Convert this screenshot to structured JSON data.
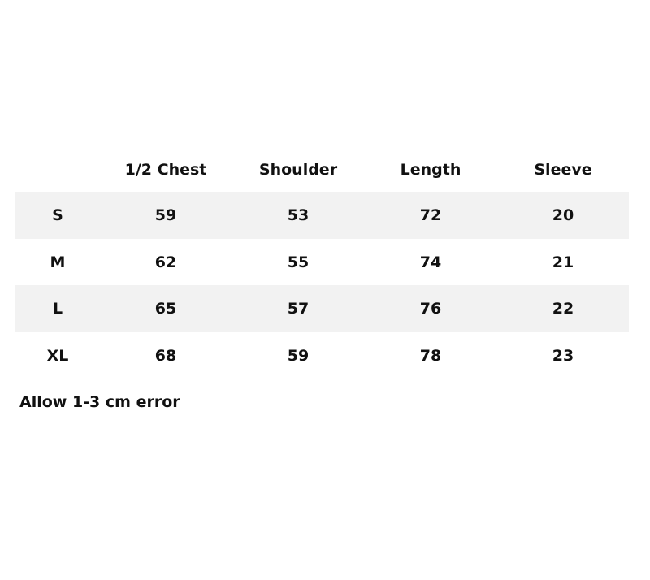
{
  "table": {
    "headers": [
      "",
      "1/2 Chest",
      "Shoulder",
      "Length",
      "Sleeve"
    ],
    "rows": [
      [
        "S",
        "59",
        "53",
        "72",
        "20"
      ],
      [
        "M",
        "62",
        "55",
        "74",
        "21"
      ],
      [
        "L",
        "65",
        "57",
        "76",
        "22"
      ],
      [
        "XL",
        "68",
        "59",
        "78",
        "23"
      ]
    ],
    "stripe_color": "#f2f2f2"
  },
  "note": "Allow 1-3 cm error"
}
